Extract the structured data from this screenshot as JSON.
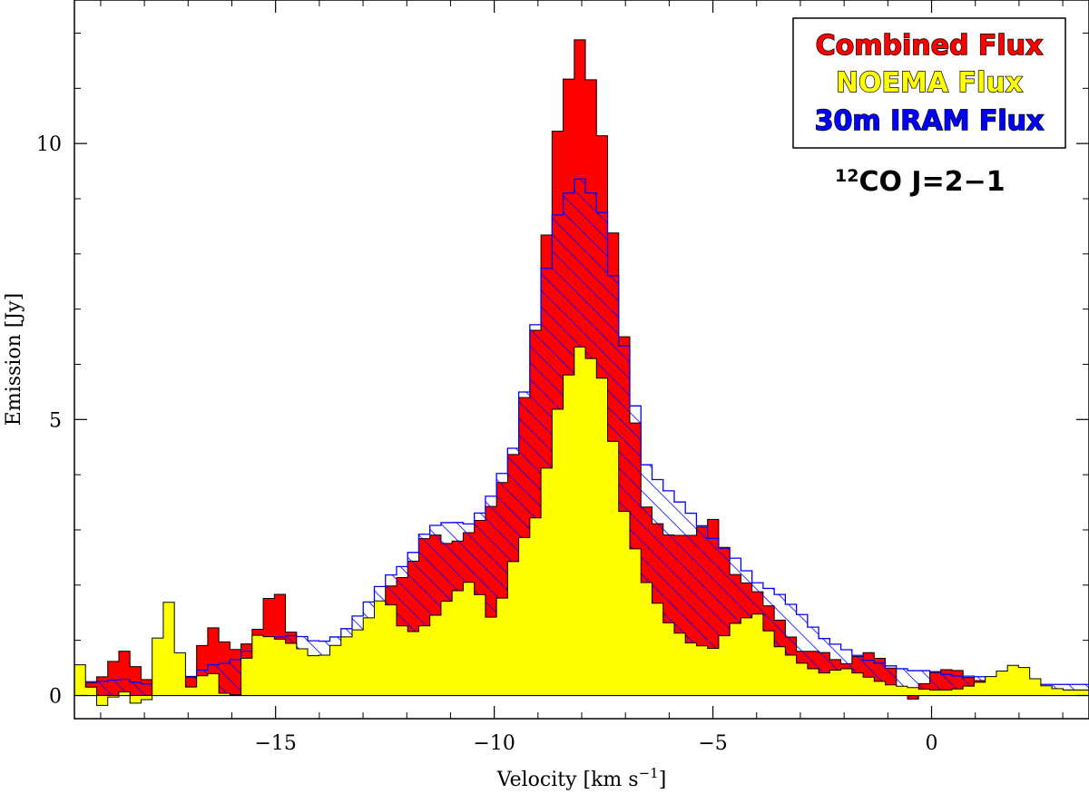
{
  "chart_data": {
    "type": "bar",
    "step_width_kmps": 0.254,
    "xlabel": "Velocity [km s",
    "xlabel_sup": "−1",
    "xlabel_end": "]",
    "ylabel": "Emission [Jy]",
    "xlim": [
      -19.6,
      3.6
    ],
    "ylim": [
      -0.42,
      12.6
    ],
    "xticks": [
      {
        "value": -15,
        "label": "−15"
      },
      {
        "value": -10,
        "label": "−10"
      },
      {
        "value": -5,
        "label": "−5"
      },
      {
        "value": 0,
        "label": "0"
      }
    ],
    "yticks": [
      {
        "value": 0,
        "label": "0"
      },
      {
        "value": 5,
        "label": "5"
      },
      {
        "value": 10,
        "label": "10"
      }
    ],
    "legend": {
      "placement": "top-right",
      "entries": [
        {
          "label": "Combined Flux",
          "color": "#ff0000"
        },
        {
          "label": "NOEMA Flux",
          "color": "#ffff00"
        },
        {
          "label": "30m IRAM Flux",
          "color": "#0000ff"
        }
      ]
    },
    "annotation": {
      "sup": "12",
      "text": "CO J=2−1"
    },
    "series": [
      {
        "name": "Combined Flux",
        "color": "#ff0000",
        "points": [
          [
            -19.5,
            0.15
          ],
          [
            -19.0,
            0.3
          ],
          [
            -18.5,
            0.85
          ],
          [
            -18.0,
            0.3
          ],
          [
            -17.5,
            0.2
          ],
          [
            -17.0,
            0.2
          ],
          [
            -16.5,
            1.3
          ],
          [
            -16.0,
            0.8
          ],
          [
            -15.5,
            1.0
          ],
          [
            -15.0,
            2.1
          ],
          [
            -14.5,
            0.75
          ],
          [
            -14.0,
            0.7
          ],
          [
            -13.5,
            0.75
          ],
          [
            -13.0,
            0.8
          ],
          [
            -12.5,
            1.9
          ],
          [
            -12.0,
            2.2
          ],
          [
            -11.5,
            3.0
          ],
          [
            -11.0,
            2.7
          ],
          [
            -10.5,
            3.0
          ],
          [
            -10.0,
            3.5
          ],
          [
            -9.5,
            4.5
          ],
          [
            -9.0,
            6.9
          ],
          [
            -8.5,
            10.6
          ],
          [
            -8.0,
            12.0
          ],
          [
            -7.5,
            10.0
          ],
          [
            -7.0,
            6.3
          ],
          [
            -6.5,
            3.3
          ],
          [
            -6.0,
            2.9
          ],
          [
            -5.5,
            2.9
          ],
          [
            -5.0,
            3.2
          ],
          [
            -4.5,
            2.2
          ],
          [
            -4.0,
            1.9
          ],
          [
            -3.5,
            1.4
          ],
          [
            -3.0,
            0.8
          ],
          [
            -2.5,
            0.8
          ],
          [
            -2.0,
            0.55
          ],
          [
            -1.5,
            0.8
          ],
          [
            -1.0,
            0.6
          ],
          [
            -0.5,
            -0.15
          ],
          [
            0.0,
            0.4
          ],
          [
            0.5,
            0.5
          ],
          [
            1.0,
            0.25
          ],
          [
            1.5,
            0.35
          ],
          [
            2.0,
            0.25
          ],
          [
            2.5,
            0.15
          ],
          [
            3.0,
            0.1
          ]
        ]
      },
      {
        "name": "30m IRAM Flux",
        "color": "#0000ff",
        "points": [
          [
            -19.5,
            0.25
          ],
          [
            -19.0,
            0.25
          ],
          [
            -18.5,
            0.3
          ],
          [
            -18.0,
            0.2
          ],
          [
            -17.5,
            0.3
          ],
          [
            -17.0,
            0.3
          ],
          [
            -16.5,
            0.55
          ],
          [
            -16.0,
            0.6
          ],
          [
            -15.5,
            0.9
          ],
          [
            -15.0,
            1.05
          ],
          [
            -14.5,
            1.1
          ],
          [
            -14.0,
            0.95
          ],
          [
            -13.5,
            1.1
          ],
          [
            -13.0,
            1.55
          ],
          [
            -12.5,
            2.1
          ],
          [
            -12.0,
            2.4
          ],
          [
            -11.5,
            3.05
          ],
          [
            -11.0,
            3.15
          ],
          [
            -10.5,
            3.1
          ],
          [
            -10.0,
            3.7
          ],
          [
            -9.5,
            4.6
          ],
          [
            -9.0,
            7.0
          ],
          [
            -8.5,
            8.9
          ],
          [
            -8.0,
            9.4
          ],
          [
            -7.5,
            8.7
          ],
          [
            -7.0,
            6.2
          ],
          [
            -6.5,
            4.1
          ],
          [
            -6.0,
            3.7
          ],
          [
            -5.5,
            3.3
          ],
          [
            -5.0,
            2.85
          ],
          [
            -4.5,
            2.5
          ],
          [
            -4.0,
            2.05
          ],
          [
            -3.5,
            1.85
          ],
          [
            -3.0,
            1.5
          ],
          [
            -2.5,
            1.05
          ],
          [
            -2.0,
            0.85
          ],
          [
            -1.5,
            0.65
          ],
          [
            -1.0,
            0.55
          ],
          [
            -0.5,
            0.45
          ],
          [
            0.0,
            0.45
          ],
          [
            0.5,
            0.35
          ],
          [
            1.0,
            0.35
          ],
          [
            1.5,
            0.3
          ],
          [
            2.0,
            0.25
          ],
          [
            2.5,
            0.2
          ],
          [
            3.0,
            0.2
          ]
        ]
      },
      {
        "name": "NOEMA Flux",
        "color": "#ffff00",
        "points": [
          [
            -19.5,
            0.6
          ],
          [
            -19.0,
            -0.2
          ],
          [
            -18.5,
            0.1
          ],
          [
            -18.0,
            -0.3
          ],
          [
            -17.5,
            1.9
          ],
          [
            -17.0,
            0.1
          ],
          [
            -16.5,
            0.5
          ],
          [
            -16.0,
            -0.2
          ],
          [
            -15.5,
            1.1
          ],
          [
            -15.0,
            1.05
          ],
          [
            -14.5,
            0.9
          ],
          [
            -14.0,
            0.65
          ],
          [
            -13.5,
            1.0
          ],
          [
            -13.0,
            1.25
          ],
          [
            -12.5,
            1.85
          ],
          [
            -12.0,
            1.1
          ],
          [
            -11.5,
            1.3
          ],
          [
            -11.0,
            1.8
          ],
          [
            -10.5,
            2.1
          ],
          [
            -10.0,
            1.3
          ],
          [
            -9.5,
            2.6
          ],
          [
            -9.0,
            3.3
          ],
          [
            -8.5,
            5.4
          ],
          [
            -8.0,
            6.4
          ],
          [
            -7.5,
            5.7
          ],
          [
            -7.0,
            3.2
          ],
          [
            -6.5,
            2.0
          ],
          [
            -6.0,
            1.3
          ],
          [
            -5.5,
            0.95
          ],
          [
            -5.0,
            0.85
          ],
          [
            -4.5,
            1.3
          ],
          [
            -4.0,
            1.5
          ],
          [
            -3.5,
            0.9
          ],
          [
            -3.0,
            0.6
          ],
          [
            -2.5,
            0.4
          ],
          [
            -2.0,
            0.5
          ],
          [
            -1.5,
            0.35
          ],
          [
            -1.0,
            0.2
          ],
          [
            -0.5,
            0.15
          ],
          [
            0.0,
            0.1
          ],
          [
            0.5,
            0.1
          ],
          [
            1.0,
            0.2
          ],
          [
            1.5,
            0.4
          ],
          [
            2.0,
            0.6
          ],
          [
            2.5,
            0.2
          ],
          [
            3.0,
            0.1
          ]
        ]
      }
    ]
  }
}
